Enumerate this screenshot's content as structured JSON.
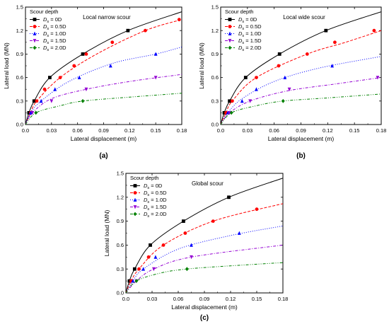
{
  "panels": [
    {
      "id": "a",
      "caption": "(a)",
      "chart_data": {
        "type": "line",
        "title": "Local narrow scour",
        "xlabel": "Lateral displacement (m)",
        "ylabel": "Lateral load (MN)",
        "xlim": [
          0,
          0.18
        ],
        "ylim": [
          0,
          1.5
        ],
        "xticks": [
          "0.0",
          "0.03",
          "0.06",
          "0.09",
          "0.12",
          "0.15",
          "0.18"
        ],
        "yticks": [
          "0.0",
          "0.3",
          "0.6",
          "0.9",
          "1.2",
          "1.5"
        ],
        "legend_title": "Scour depth",
        "legend_position": "top-left",
        "series": [
          {
            "name": "Ds = 0D",
            "sub": "s",
            "value": "0D",
            "color": "#000000",
            "marker": "square",
            "dash": "",
            "points": [
              [
                0,
                0
              ],
              [
                0.004,
                0.15
              ],
              [
                0.01,
                0.3
              ],
              [
                0.028,
                0.6
              ],
              [
                0.066,
                0.9
              ],
              [
                0.118,
                1.2
              ],
              [
                0.18,
                1.44
              ]
            ],
            "markers": [
              [
                0.004,
                0.15
              ],
              [
                0.01,
                0.3
              ],
              [
                0.028,
                0.6
              ],
              [
                0.066,
                0.9
              ],
              [
                0.118,
                1.2
              ]
            ]
          },
          {
            "name": "Ds = 0.5D",
            "sub": "s",
            "value": "0.5D",
            "color": "#ff0000",
            "marker": "circle",
            "dash": "4,2",
            "points": [
              [
                0,
                0
              ],
              [
                0.006,
                0.15
              ],
              [
                0.013,
                0.3
              ],
              [
                0.04,
                0.6
              ],
              [
                0.082,
                0.9
              ],
              [
                0.138,
                1.2
              ],
              [
                0.18,
                1.34
              ]
            ],
            "markers": [
              [
                0.006,
                0.15
              ],
              [
                0.013,
                0.3
              ],
              [
                0.022,
                0.45
              ],
              [
                0.04,
                0.6
              ],
              [
                0.056,
                0.75
              ],
              [
                0.07,
                0.9
              ],
              [
                0.1,
                1.05
              ],
              [
                0.138,
                1.2
              ],
              [
                0.177,
                1.34
              ]
            ]
          },
          {
            "name": "Ds = 1.0D",
            "sub": "s",
            "value": "1.0D",
            "color": "#0000ff",
            "marker": "triangle-up",
            "dash": "1,2",
            "points": [
              [
                0,
                0
              ],
              [
                0.006,
                0.15
              ],
              [
                0.018,
                0.3
              ],
              [
                0.05,
                0.55
              ],
              [
                0.1,
                0.78
              ],
              [
                0.15,
                0.9
              ],
              [
                0.18,
                0.99
              ]
            ],
            "markers": [
              [
                0.006,
                0.15
              ],
              [
                0.018,
                0.3
              ],
              [
                0.034,
                0.45
              ],
              [
                0.062,
                0.6
              ],
              [
                0.098,
                0.75
              ],
              [
                0.15,
                0.9
              ]
            ]
          },
          {
            "name": "Ds = 1.5D",
            "sub": "s",
            "value": "1.5D",
            "color": "#9400d3",
            "marker": "triangle-down",
            "dash": "4,2,1,2",
            "points": [
              [
                0,
                0
              ],
              [
                0.008,
                0.15
              ],
              [
                0.03,
                0.33
              ],
              [
                0.07,
                0.45
              ],
              [
                0.12,
                0.55
              ],
              [
                0.18,
                0.64
              ]
            ],
            "markers": [
              [
                0.008,
                0.15
              ],
              [
                0.03,
                0.3
              ],
              [
                0.07,
                0.45
              ],
              [
                0.15,
                0.6
              ]
            ]
          },
          {
            "name": "Ds = 2.0D",
            "sub": "s",
            "value": "2.0D",
            "color": "#008000",
            "marker": "diamond",
            "dash": "4,2,1,2,1,2",
            "points": [
              [
                0,
                0
              ],
              [
                0.012,
                0.15
              ],
              [
                0.04,
                0.24
              ],
              [
                0.066,
                0.3
              ],
              [
                0.12,
                0.35
              ],
              [
                0.18,
                0.4
              ]
            ],
            "markers": [
              [
                0.012,
                0.15
              ],
              [
                0.066,
                0.3
              ]
            ]
          }
        ]
      }
    },
    {
      "id": "b",
      "caption": "(b)",
      "chart_data": {
        "type": "line",
        "title": "Local wide scour",
        "xlabel": "Lateral displacement (m)",
        "ylabel": "Lateral load (MN)",
        "xlim": [
          0,
          0.18
        ],
        "ylim": [
          0,
          1.5
        ],
        "xticks": [
          "0.0",
          "0.03",
          "0.06",
          "0.09",
          "0.12",
          "0.15",
          "0.18"
        ],
        "yticks": [
          "0.0",
          "0.3",
          "0.6",
          "0.9",
          "1.2",
          "1.5"
        ],
        "legend_title": "Scour depth",
        "legend_position": "top-left",
        "series": [
          {
            "name": "Ds = 0D",
            "sub": "s",
            "value": "0D",
            "color": "#000000",
            "marker": "square",
            "dash": "",
            "points": [
              [
                0,
                0
              ],
              [
                0.004,
                0.15
              ],
              [
                0.01,
                0.3
              ],
              [
                0.028,
                0.6
              ],
              [
                0.066,
                0.9
              ],
              [
                0.118,
                1.2
              ],
              [
                0.18,
                1.44
              ]
            ],
            "markers": [
              [
                0.004,
                0.15
              ],
              [
                0.01,
                0.3
              ],
              [
                0.028,
                0.6
              ],
              [
                0.066,
                0.9
              ],
              [
                0.118,
                1.2
              ]
            ]
          },
          {
            "name": "Ds = 0.5D",
            "sub": "s",
            "value": "0.5D",
            "color": "#ff0000",
            "marker": "circle",
            "dash": "4,2",
            "points": [
              [
                0,
                0
              ],
              [
                0.006,
                0.15
              ],
              [
                0.013,
                0.3
              ],
              [
                0.04,
                0.6
              ],
              [
                0.097,
                0.9
              ],
              [
                0.14,
                1.05
              ],
              [
                0.18,
                1.2
              ]
            ],
            "markers": [
              [
                0.006,
                0.15
              ],
              [
                0.013,
                0.3
              ],
              [
                0.04,
                0.6
              ],
              [
                0.065,
                0.75
              ],
              [
                0.097,
                0.9
              ],
              [
                0.128,
                1.05
              ],
              [
                0.172,
                1.2
              ]
            ]
          },
          {
            "name": "Ds = 1.0D",
            "sub": "s",
            "value": "1.0D",
            "color": "#0000ff",
            "marker": "triangle-up",
            "dash": "1,2",
            "points": [
              [
                0,
                0
              ],
              [
                0.008,
                0.15
              ],
              [
                0.024,
                0.33
              ],
              [
                0.06,
                0.55
              ],
              [
                0.11,
                0.72
              ],
              [
                0.18,
                0.87
              ]
            ],
            "markers": [
              [
                0.008,
                0.15
              ],
              [
                0.024,
                0.3
              ],
              [
                0.04,
                0.45
              ],
              [
                0.072,
                0.6
              ],
              [
                0.125,
                0.75
              ]
            ]
          },
          {
            "name": "Ds = 1.5D",
            "sub": "s",
            "value": "1.5D",
            "color": "#9400d3",
            "marker": "triangle-down",
            "dash": "4,2,1,2",
            "points": [
              [
                0,
                0
              ],
              [
                0.01,
                0.15
              ],
              [
                0.033,
                0.3
              ],
              [
                0.075,
                0.43
              ],
              [
                0.13,
                0.52
              ],
              [
                0.18,
                0.6
              ]
            ],
            "markers": [
              [
                0.01,
                0.15
              ],
              [
                0.033,
                0.3
              ],
              [
                0.077,
                0.45
              ],
              [
                0.176,
                0.6
              ]
            ]
          },
          {
            "name": "Ds = 2.0D",
            "sub": "s",
            "value": "2.0D",
            "color": "#008000",
            "marker": "diamond",
            "dash": "4,2,1,2,1,2",
            "points": [
              [
                0,
                0
              ],
              [
                0.012,
                0.15
              ],
              [
                0.04,
                0.24
              ],
              [
                0.07,
                0.3
              ],
              [
                0.12,
                0.34
              ],
              [
                0.18,
                0.39
              ]
            ],
            "markers": [
              [
                0.012,
                0.15
              ],
              [
                0.07,
                0.3
              ]
            ]
          }
        ]
      }
    },
    {
      "id": "c",
      "caption": "(c)",
      "chart_data": {
        "type": "line",
        "title": "Global scour",
        "xlabel": "Lateral displacement (m)",
        "ylabel": "Lateral load (MN)",
        "xlim": [
          0,
          0.18
        ],
        "ylim": [
          0,
          1.5
        ],
        "xticks": [
          "0.0",
          "0.03",
          "0.06",
          "0.09",
          "0.12",
          "0.15",
          "0.18"
        ],
        "yticks": [
          "0.0",
          "0.3",
          "0.6",
          "0.9",
          "1.2",
          "1.5"
        ],
        "legend_title": "Scour depth",
        "legend_position": "top-left",
        "series": [
          {
            "name": "Ds = 0D",
            "sub": "s",
            "value": "0D",
            "color": "#000000",
            "marker": "square",
            "dash": "",
            "points": [
              [
                0,
                0
              ],
              [
                0.004,
                0.15
              ],
              [
                0.01,
                0.3
              ],
              [
                0.028,
                0.6
              ],
              [
                0.066,
                0.9
              ],
              [
                0.118,
                1.2
              ],
              [
                0.18,
                1.44
              ]
            ],
            "markers": [
              [
                0.004,
                0.15
              ],
              [
                0.01,
                0.3
              ],
              [
                0.028,
                0.6
              ],
              [
                0.066,
                0.9
              ],
              [
                0.118,
                1.2
              ]
            ]
          },
          {
            "name": "Ds = 0.5D",
            "sub": "s",
            "value": "0.5D",
            "color": "#ff0000",
            "marker": "circle",
            "dash": "4,2",
            "points": [
              [
                0,
                0
              ],
              [
                0.006,
                0.15
              ],
              [
                0.015,
                0.3
              ],
              [
                0.043,
                0.6
              ],
              [
                0.1,
                0.9
              ],
              [
                0.18,
                1.12
              ]
            ],
            "markers": [
              [
                0.006,
                0.15
              ],
              [
                0.015,
                0.3
              ],
              [
                0.026,
                0.45
              ],
              [
                0.043,
                0.6
              ],
              [
                0.068,
                0.75
              ],
              [
                0.1,
                0.9
              ],
              [
                0.15,
                1.05
              ]
            ]
          },
          {
            "name": "Ds = 1.0D",
            "sub": "s",
            "value": "1.0D",
            "color": "#0000ff",
            "marker": "triangle-up",
            "dash": "1,2",
            "points": [
              [
                0,
                0
              ],
              [
                0.008,
                0.15
              ],
              [
                0.02,
                0.3
              ],
              [
                0.06,
                0.55
              ],
              [
                0.12,
                0.72
              ],
              [
                0.18,
                0.84
              ]
            ],
            "markers": [
              [
                0.008,
                0.15
              ],
              [
                0.02,
                0.3
              ],
              [
                0.034,
                0.45
              ],
              [
                0.075,
                0.6
              ],
              [
                0.13,
                0.75
              ]
            ]
          },
          {
            "name": "Ds = 1.5D",
            "sub": "s",
            "value": "1.5D",
            "color": "#9400d3",
            "marker": "triangle-down",
            "dash": "4,2,1,2",
            "points": [
              [
                0,
                0
              ],
              [
                0.012,
                0.15
              ],
              [
                0.032,
                0.3
              ],
              [
                0.075,
                0.45
              ],
              [
                0.18,
                0.6
              ]
            ],
            "markers": [
              [
                0.012,
                0.15
              ],
              [
                0.032,
                0.3
              ],
              [
                0.075,
                0.45
              ]
            ]
          },
          {
            "name": "Ds = 2.0D",
            "sub": "s",
            "value": "2.0D",
            "color": "#008000",
            "marker": "diamond",
            "dash": "4,2,1,2,1,2",
            "points": [
              [
                0,
                0
              ],
              [
                0.012,
                0.15
              ],
              [
                0.04,
                0.25
              ],
              [
                0.07,
                0.3
              ],
              [
                0.12,
                0.34
              ],
              [
                0.18,
                0.38
              ]
            ],
            "markers": [
              [
                0.012,
                0.15
              ],
              [
                0.07,
                0.3
              ]
            ]
          }
        ]
      }
    }
  ]
}
